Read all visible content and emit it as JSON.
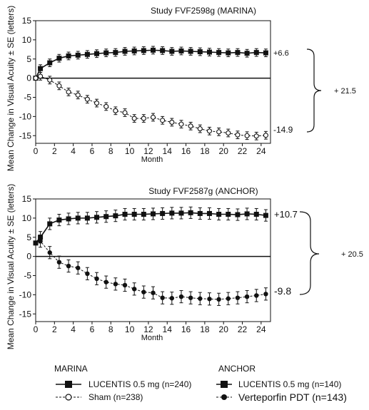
{
  "chart_data": [
    {
      "type": "line",
      "title": "Study FVF2598g (MARINA)",
      "xlabel": "Month",
      "ylabel": "Mean Change in Visual Acuity ± SE (letters)",
      "xlim": [
        0,
        25
      ],
      "ylim": [
        -17,
        15
      ],
      "xticks": [
        "0",
        "2",
        "4",
        "6",
        "8",
        "10",
        "12",
        "14",
        "16",
        "18",
        "20",
        "22",
        "24"
      ],
      "yticks": [
        "15",
        "10",
        "5",
        "0",
        "-5",
        "-10",
        "-15"
      ],
      "reference_line_y": 0,
      "series": [
        {
          "name": "LUCENTIS 0.5 mg (n=240)",
          "marker": "filled-square",
          "x": [
            0,
            0.5,
            1.5,
            2.5,
            3.5,
            4.5,
            5.5,
            6.5,
            7.5,
            8.5,
            9.5,
            10.5,
            11.5,
            12.5,
            13.5,
            14.5,
            15.5,
            16.5,
            17.5,
            18.5,
            19.5,
            20.5,
            21.5,
            22.5,
            23.5,
            24.5
          ],
          "y": [
            0,
            2.5,
            4.0,
            5.2,
            5.8,
            6.0,
            6.2,
            6.4,
            6.6,
            6.7,
            7.0,
            7.1,
            7.2,
            7.3,
            7.2,
            7.0,
            7.1,
            7.0,
            6.9,
            6.8,
            6.7,
            6.6,
            6.7,
            6.5,
            6.7,
            6.6
          ],
          "error": 1.0,
          "end_label": "+6.6"
        },
        {
          "name": "Sham (n=238)",
          "marker": "open-circle",
          "x": [
            0,
            0.5,
            1.5,
            2.5,
            3.5,
            4.5,
            5.5,
            6.5,
            7.5,
            8.5,
            9.5,
            10.5,
            11.5,
            12.5,
            13.5,
            14.5,
            15.5,
            16.5,
            17.5,
            18.5,
            19.5,
            20.5,
            21.5,
            22.5,
            23.5,
            24.5
          ],
          "y": [
            0,
            0.5,
            -0.5,
            -2.0,
            -3.6,
            -4.4,
            -5.5,
            -6.5,
            -7.4,
            -8.5,
            -9.0,
            -10.5,
            -10.5,
            -10.2,
            -11.0,
            -11.5,
            -12.0,
            -12.5,
            -13.2,
            -13.8,
            -14.0,
            -14.3,
            -14.8,
            -15.0,
            -15.1,
            -14.9
          ],
          "error": 1.0,
          "end_label": "-14.9"
        }
      ],
      "bracket_label": "+ 21.5"
    },
    {
      "type": "line",
      "title": "Study FVF2587g (ANCHOR)",
      "xlabel": "Month",
      "ylabel": "Mean Change in Visual Acuity ± SE (letters)",
      "xlim": [
        0,
        25
      ],
      "ylim": [
        -17,
        15
      ],
      "xticks": [
        "0",
        "2",
        "4",
        "6",
        "8",
        "10",
        "12",
        "14",
        "16",
        "18",
        "20",
        "22",
        "24"
      ],
      "yticks": [
        "15",
        "10",
        "5",
        "0",
        "-5",
        "-10",
        "-15"
      ],
      "reference_line_y": 0,
      "series": [
        {
          "name": "LUCENTIS 0.5 mg (n=140)",
          "marker": "filled-square",
          "x": [
            0,
            0.5,
            1.5,
            2.5,
            3.5,
            4.5,
            5.5,
            6.5,
            7.5,
            8.5,
            9.5,
            10.5,
            11.5,
            12.5,
            13.5,
            14.5,
            15.5,
            16.5,
            17.5,
            18.5,
            19.5,
            20.5,
            21.5,
            22.5,
            23.5,
            24.5
          ],
          "y": [
            3.5,
            5.0,
            8.5,
            9.5,
            9.8,
            10.0,
            10.0,
            10.2,
            10.4,
            10.6,
            11.0,
            11.0,
            11.0,
            11.1,
            11.2,
            11.3,
            11.3,
            11.4,
            11.2,
            11.2,
            11.0,
            11.0,
            10.9,
            11.1,
            11.0,
            10.7
          ],
          "error": 1.5,
          "end_label": "+10.7"
        },
        {
          "name": "Verteporfin PDT (n=143)",
          "marker": "filled-circle",
          "x": [
            0,
            0.5,
            1.5,
            2.5,
            3.5,
            4.5,
            5.5,
            6.5,
            7.5,
            8.5,
            9.5,
            10.5,
            11.5,
            12.5,
            13.5,
            14.5,
            15.5,
            16.5,
            17.5,
            18.5,
            19.5,
            20.5,
            21.5,
            22.5,
            23.5,
            24.5
          ],
          "y": [
            3.5,
            4.0,
            1.0,
            -1.5,
            -2.5,
            -3.0,
            -4.5,
            -5.8,
            -6.7,
            -7.2,
            -7.5,
            -8.5,
            -9.3,
            -9.5,
            -10.8,
            -10.9,
            -10.5,
            -10.8,
            -11.0,
            -11.1,
            -11.2,
            -11.0,
            -10.8,
            -10.5,
            -10.2,
            -9.8
          ],
          "error": 1.6,
          "end_label": "-9.8"
        }
      ],
      "bracket_label": "+ 20.5"
    }
  ],
  "legend": {
    "left": {
      "title": "MARINA",
      "items": [
        {
          "label": "LUCENTIS 0.5 mg (n=240)",
          "marker": "filled-square"
        },
        {
          "label": "Sham (n=238)",
          "marker": "open-circle"
        }
      ]
    },
    "right": {
      "title": "ANCHOR",
      "items": [
        {
          "label": "LUCENTIS 0.5 mg (n=140)",
          "marker": "filled-square"
        },
        {
          "label": "Verteporfin PDT (n=143)",
          "marker": "filled-circle"
        }
      ]
    }
  }
}
